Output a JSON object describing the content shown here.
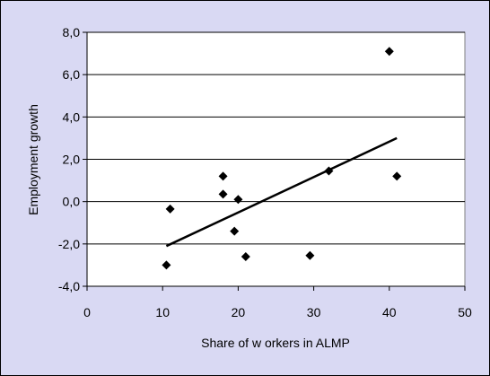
{
  "chart_data": {
    "type": "scatter",
    "title": "",
    "xlabel": "Share of w orkers in ALMP",
    "ylabel": "Employment growth",
    "xlim": [
      0,
      50
    ],
    "ylim": [
      -4,
      8
    ],
    "x_ticks": [
      0,
      10,
      20,
      30,
      40,
      50
    ],
    "y_ticks": [
      -4,
      -2,
      0,
      2,
      4,
      6,
      8
    ],
    "x_tick_labels": [
      "0",
      "10",
      "20",
      "30",
      "40",
      "50"
    ],
    "y_tick_labels": [
      "-4,0",
      "-2,0",
      "0,0",
      "2,0",
      "4,0",
      "6,0",
      "8,0"
    ],
    "grid": {
      "horizontal": true,
      "vertical": false
    },
    "legend": "none",
    "colors": {
      "chart_area": "#d9d9f3",
      "plot_area": "#ffffff",
      "marker": "#000000",
      "trend_line": "#000000",
      "gridline": "#000000"
    },
    "series": [
      {
        "marker": "diamond",
        "points": [
          {
            "x": 10.5,
            "y": -3.0
          },
          {
            "x": 11.0,
            "y": -0.35
          },
          {
            "x": 18.0,
            "y": 1.2
          },
          {
            "x": 18.0,
            "y": 0.35
          },
          {
            "x": 19.5,
            "y": -1.4
          },
          {
            "x": 20.0,
            "y": 0.1
          },
          {
            "x": 21.0,
            "y": -2.6
          },
          {
            "x": 29.5,
            "y": -2.55
          },
          {
            "x": 32.0,
            "y": 1.45
          },
          {
            "x": 40.0,
            "y": 7.1
          },
          {
            "x": 41.0,
            "y": 1.2
          }
        ]
      }
    ],
    "trendline": {
      "x": [
        10.5,
        41.0
      ],
      "y": [
        -2.1,
        3.0
      ]
    }
  }
}
